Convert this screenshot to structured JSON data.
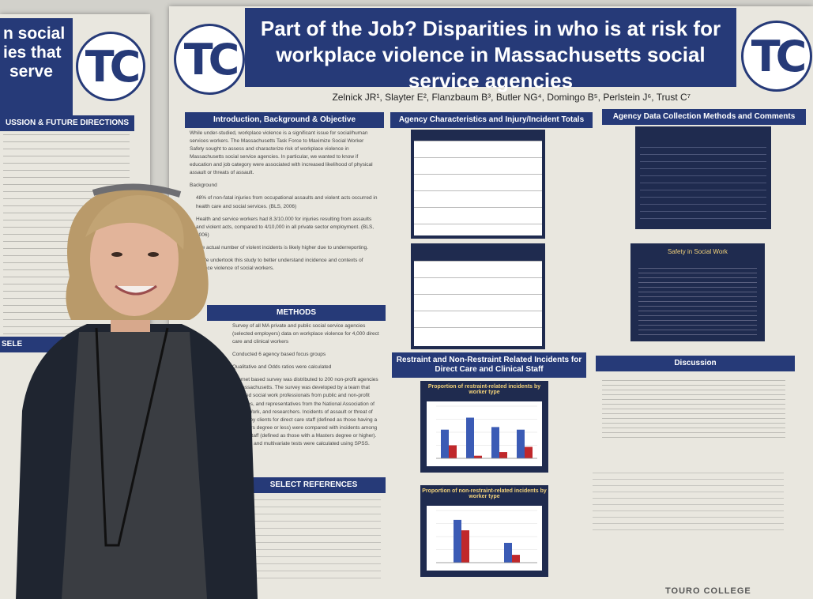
{
  "poster": {
    "title": "Part of the Job? Disparities in who is at risk for workplace violence in Massachusetts social service agencies",
    "authors": "Zelnick JR¹, Slayter E², Flanzbaum B³, Butler NG⁴, Domingo B⁵, Perlstein J⁶, Trust C⁷",
    "footer_logo": "TOURO COLLEGE",
    "logo_text": "TC",
    "sections": {
      "intro": "Introduction, Background & Objective",
      "methods": "METHODS",
      "select_refs": "SELECT REFERENCES",
      "agency": "Agency Characteristics and Injury/Incident Totals",
      "data_methods": "Agency Data Collection Methods and Comments",
      "restraint": "Restraint and Non-Restraint Related Incidents for Direct Care and Clinical Staff",
      "discussion": "Discussion",
      "safety": "Safety in Social Work"
    },
    "intro_text": [
      "While under-studied, workplace violence is a significant issue for social/human services workers. The Massachusetts Task Force to Maximize Social Worker Safety sought to assess and characterize risk of workplace violence in Massachusetts social service agencies. In particular, we wanted to know if education and job category were associated with increased likelihood of physical assault or threats of assault.",
      "Background",
      "48% of non-fatal injuries from occupational assaults and violent acts occurred in health care and social services. (BLS, 2006)",
      "Health and service workers had 8.3/10,000 for injuries resulting from assaults and violent acts, compared to 4/10,000 in all private sector employment. (BLS, 2006)",
      "The actual number of violent incidents is likely higher due to underreporting.",
      "Aim: We undertook this study to better understand incidence and contexts of workplace violence of social workers."
    ],
    "methods_text": [
      "Survey of all MA private and public social service agencies (selected employers) data on workplace violence for 4,000 direct care and clinical workers",
      "Conducted 6 agency based focus groups",
      "Qualitative and Odds ratios were calculated",
      "Internet based survey was distributed to 200 non-profit agencies in Massachusetts. The survey was developed by a team that included social work professionals from public and non-profit agencies, and representatives from the National Association of Social Work, and researchers. Incidents of assault or threat of assault by clients for direct care staff (defined as those having a Bachelors degree or less) were compared with incidents among clinical staff (defined as those with a Masters degree or higher). Bivariate and multivariate tests were calculated using SPSS."
    ],
    "left_poster": {
      "banner_lines": [
        "n social",
        "ies that",
        "serve"
      ],
      "discussion_head": "USSION & FUTURE DIRECTIONS",
      "select_head": "SELE"
    }
  },
  "chart_data": [
    {
      "type": "bar",
      "title": "Proportion of restraint-related incidents by worker type",
      "categories": [
        "",
        "",
        "",
        ""
      ],
      "series": [
        {
          "values": [
            0.55,
            0.78,
            0.6,
            0.55
          ]
        },
        {
          "values": [
            0.25,
            0.05,
            0.12,
            0.22
          ]
        }
      ]
    },
    {
      "type": "bar",
      "title": "Proportion of non-restraint-related incidents by worker type",
      "categories": [
        "",
        ""
      ],
      "series": [
        {
          "values": [
            0.82,
            0.38
          ]
        },
        {
          "values": [
            0.62,
            0.15
          ]
        }
      ]
    }
  ],
  "colors": {
    "navy": "#263a78",
    "chart_blue": "#3b5bb5",
    "chart_red": "#c0282b"
  }
}
